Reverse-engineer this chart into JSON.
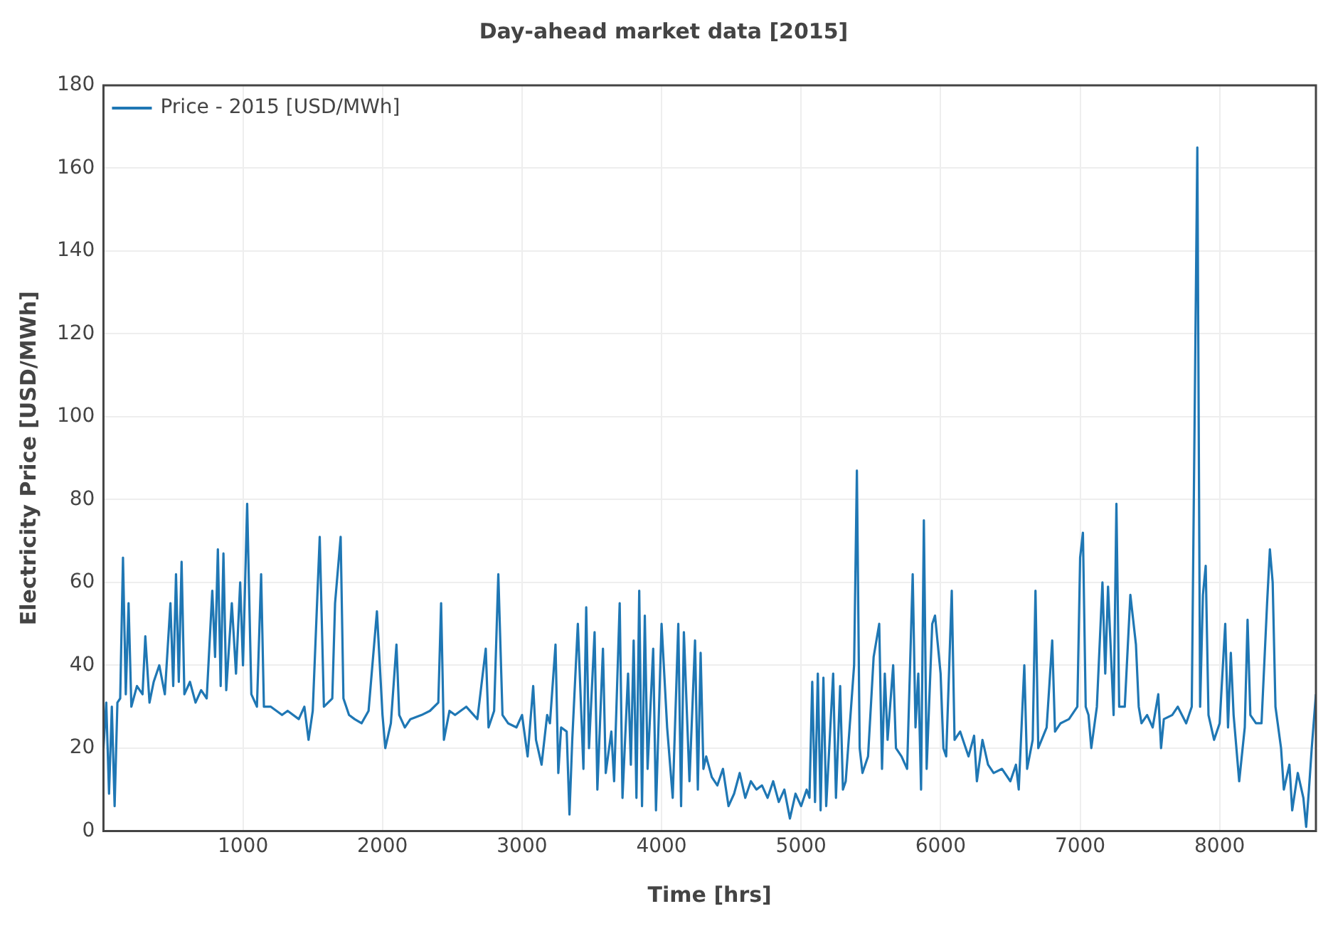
{
  "chart_data": {
    "type": "line",
    "title": "Day-ahead market data [2015]",
    "xlabel": "Time [hrs]",
    "ylabel": "Electricity Price [USD/MWh]",
    "xlim": [
      0,
      8690
    ],
    "xticks": [
      1000,
      2000,
      3000,
      4000,
      5000,
      6000,
      7000,
      8000
    ],
    "ylim": [
      0,
      180
    ],
    "yticks": [
      0,
      20,
      40,
      60,
      80,
      100,
      120,
      140,
      160,
      180
    ],
    "grid": true,
    "legend": "top left",
    "marker": "none",
    "line_style": "solid",
    "series": [
      {
        "name": "Price - 2015 [USD/MWh]",
        "color": "#1f77b4",
        "x": [
          0,
          20,
          40,
          60,
          80,
          100,
          120,
          140,
          160,
          180,
          200,
          240,
          280,
          300,
          330,
          360,
          400,
          440,
          480,
          500,
          520,
          540,
          560,
          580,
          620,
          660,
          700,
          740,
          780,
          800,
          820,
          840,
          860,
          880,
          920,
          950,
          980,
          1000,
          1030,
          1060,
          1100,
          1130,
          1150,
          1200,
          1280,
          1320,
          1400,
          1440,
          1470,
          1500,
          1550,
          1580,
          1640,
          1660,
          1700,
          1720,
          1760,
          1800,
          1850,
          1900,
          1960,
          2000,
          2020,
          2060,
          2100,
          2120,
          2160,
          2200,
          2280,
          2340,
          2400,
          2420,
          2440,
          2480,
          2520,
          2600,
          2680,
          2740,
          2760,
          2800,
          2830,
          2860,
          2900,
          2960,
          3000,
          3040,
          3080,
          3100,
          3140,
          3180,
          3200,
          3240,
          3260,
          3280,
          3320,
          3340,
          3360,
          3400,
          3440,
          3460,
          3480,
          3520,
          3540,
          3580,
          3600,
          3640,
          3660,
          3700,
          3720,
          3760,
          3780,
          3800,
          3820,
          3840,
          3860,
          3880,
          3900,
          3940,
          3960,
          4000,
          4040,
          4080,
          4120,
          4140,
          4160,
          4200,
          4240,
          4260,
          4280,
          4300,
          4320,
          4360,
          4400,
          4440,
          4480,
          4520,
          4560,
          4600,
          4640,
          4680,
          4720,
          4760,
          4800,
          4840,
          4880,
          4920,
          4960,
          5000,
          5040,
          5060,
          5080,
          5100,
          5120,
          5140,
          5160,
          5180,
          5230,
          5250,
          5280,
          5300,
          5320,
          5380,
          5400,
          5420,
          5440,
          5480,
          5520,
          5560,
          5580,
          5600,
          5620,
          5660,
          5680,
          5720,
          5760,
          5800,
          5820,
          5840,
          5860,
          5880,
          5900,
          5940,
          5960,
          6000,
          6020,
          6040,
          6080,
          6100,
          6140,
          6200,
          6240,
          6260,
          6300,
          6340,
          6380,
          6440,
          6500,
          6540,
          6560,
          6600,
          6620,
          6660,
          6680,
          6700,
          6760,
          6800,
          6820,
          6860,
          6920,
          6980,
          7000,
          7020,
          7040,
          7060,
          7080,
          7120,
          7160,
          7180,
          7200,
          7240,
          7260,
          7280,
          7320,
          7360,
          7400,
          7420,
          7440,
          7480,
          7520,
          7560,
          7580,
          7600,
          7660,
          7700,
          7760,
          7800,
          7840,
          7860,
          7880,
          7900,
          7920,
          7960,
          8000,
          8040,
          8060,
          8080,
          8100,
          8140,
          8180,
          8200,
          8220,
          8260,
          8300,
          8340,
          8360,
          8380,
          8400,
          8440,
          8460,
          8500,
          8520,
          8560,
          8600,
          8620,
          8640,
          8660,
          8690
        ],
        "values": [
          20,
          31,
          9,
          30,
          6,
          31,
          32,
          66,
          33,
          55,
          30,
          35,
          33,
          47,
          31,
          36,
          40,
          33,
          55,
          35,
          62,
          36,
          65,
          33,
          36,
          31,
          34,
          32,
          58,
          42,
          68,
          35,
          67,
          34,
          55,
          38,
          60,
          40,
          79,
          33,
          30,
          62,
          30,
          30,
          28,
          29,
          27,
          30,
          22,
          29,
          71,
          30,
          32,
          55,
          71,
          32,
          28,
          27,
          26,
          29,
          53,
          28,
          20,
          26,
          45,
          28,
          25,
          27,
          28,
          29,
          31,
          55,
          22,
          29,
          28,
          30,
          27,
          44,
          25,
          29,
          62,
          28,
          26,
          25,
          28,
          18,
          35,
          22,
          16,
          28,
          26,
          45,
          14,
          25,
          24,
          4,
          22,
          50,
          15,
          54,
          20,
          48,
          10,
          44,
          14,
          24,
          12,
          55,
          8,
          38,
          16,
          46,
          8,
          58,
          6,
          52,
          15,
          44,
          5,
          50,
          25,
          8,
          50,
          6,
          48,
          12,
          46,
          10,
          43,
          15,
          18,
          13,
          11,
          15,
          6,
          9,
          14,
          8,
          12,
          10,
          11,
          8,
          12,
          7,
          10,
          3,
          9,
          6,
          10,
          8,
          36,
          7,
          38,
          5,
          37,
          6,
          38,
          8,
          35,
          10,
          12,
          40,
          87,
          20,
          14,
          18,
          42,
          50,
          15,
          38,
          22,
          40,
          20,
          18,
          15,
          62,
          25,
          38,
          10,
          75,
          15,
          50,
          52,
          38,
          20,
          18,
          58,
          22,
          24,
          18,
          23,
          12,
          22,
          16,
          14,
          15,
          12,
          16,
          10,
          40,
          15,
          22,
          58,
          20,
          25,
          46,
          24,
          26,
          27,
          30,
          66,
          72,
          30,
          28,
          20,
          30,
          60,
          38,
          59,
          28,
          79,
          30,
          30,
          57,
          45,
          30,
          26,
          28,
          25,
          33,
          20,
          27,
          28,
          30,
          26,
          30,
          165,
          30,
          57,
          64,
          28,
          22,
          26,
          50,
          25,
          43,
          28,
          12,
          25,
          51,
          28,
          26,
          26,
          55,
          68,
          60,
          30,
          20,
          10,
          16,
          5,
          14,
          8,
          1,
          10,
          20,
          33
        ]
      }
    ]
  }
}
